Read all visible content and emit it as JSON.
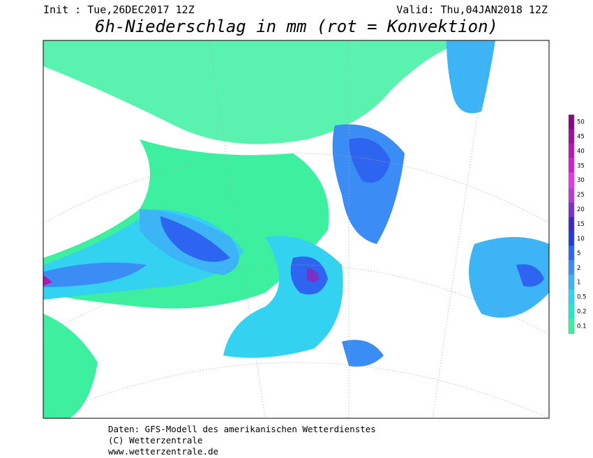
{
  "header": {
    "init": "Init : Tue,26DEC2017 12Z",
    "valid": "Valid: Thu,04JAN2018 12Z",
    "title": "6h-Niederschlag in mm (rot = Konvektion)"
  },
  "legend": {
    "entries": [
      {
        "label": "50",
        "color": "#7e0a7e"
      },
      {
        "label": "45",
        "color": "#9b119b"
      },
      {
        "label": "40",
        "color": "#b418b4"
      },
      {
        "label": "35",
        "color": "#cc22cc"
      },
      {
        "label": "30",
        "color": "#e03ae0"
      },
      {
        "label": "25",
        "color": "#b43cd2"
      },
      {
        "label": "20",
        "color": "#7832c8"
      },
      {
        "label": "15",
        "color": "#3c28be"
      },
      {
        "label": "10",
        "color": "#1e3cdc"
      },
      {
        "label": "5",
        "color": "#2d64f0"
      },
      {
        "label": "2",
        "color": "#3c8cf5"
      },
      {
        "label": "1",
        "color": "#3cb4f5"
      },
      {
        "label": "0.5",
        "color": "#32d2f0"
      },
      {
        "label": "0.2",
        "color": "#28e6c8"
      },
      {
        "label": "0.1",
        "color": "#3cf0a0"
      }
    ]
  },
  "footer": {
    "line1": "Daten: GFS-Modell des amerikanischen Wetterdienstes",
    "line2": "(C) Wetterzentrale",
    "line3": "www.wetterzentrale.de"
  }
}
